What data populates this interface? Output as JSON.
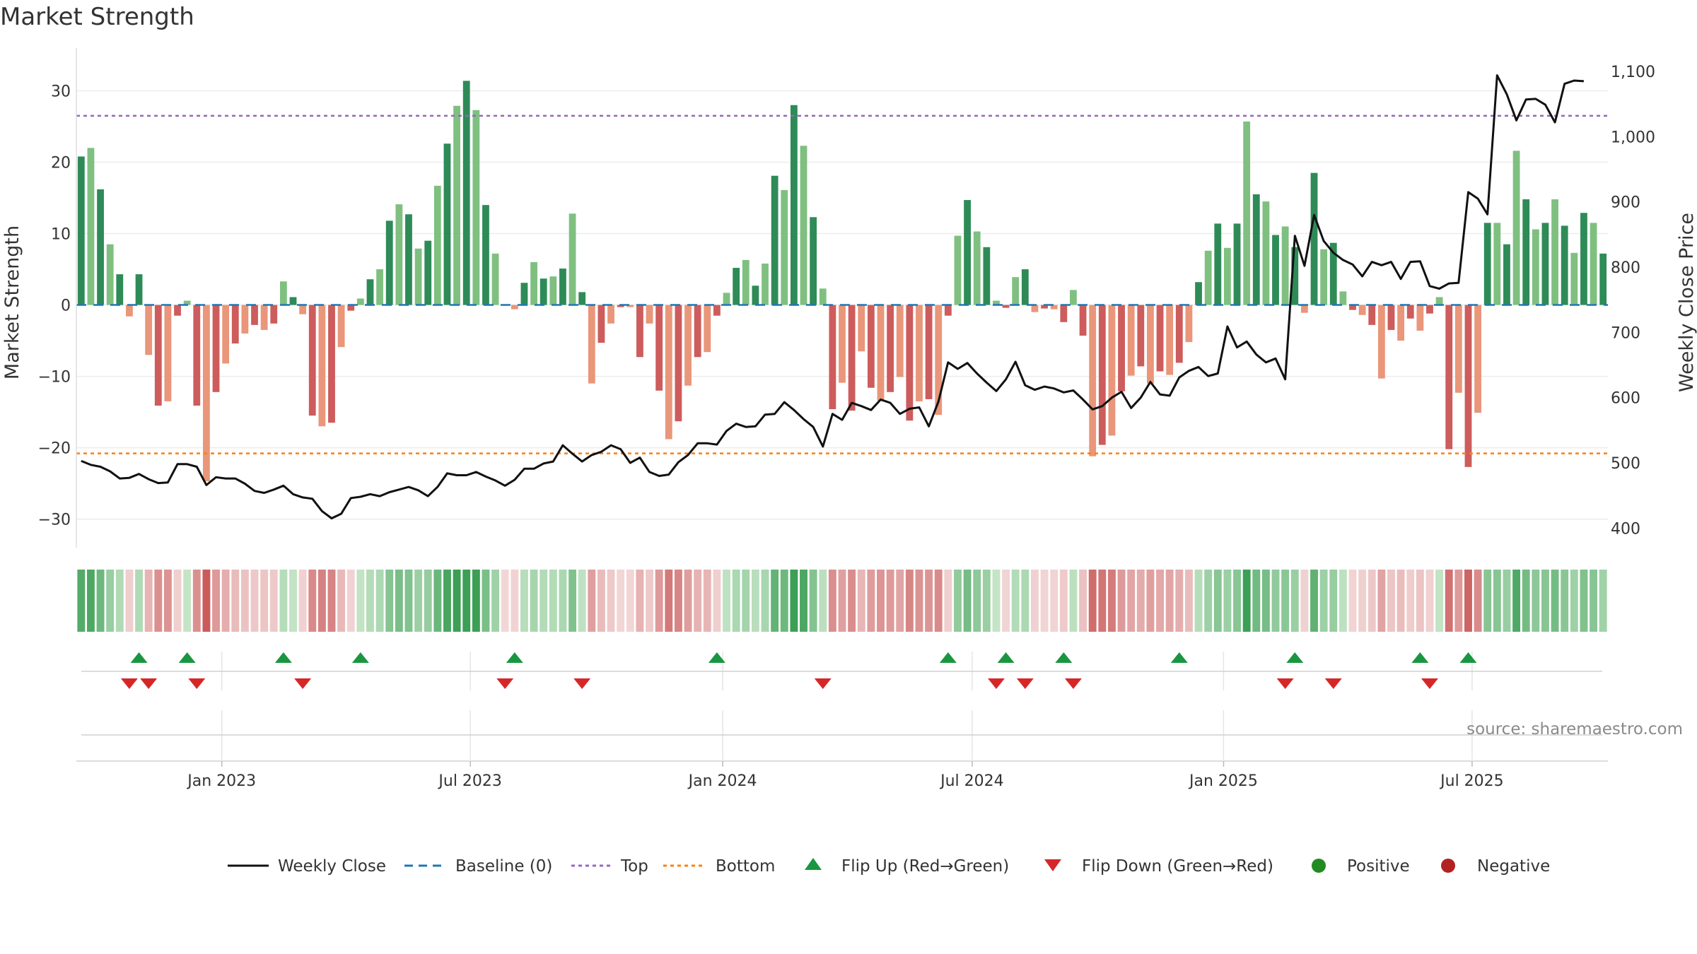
{
  "chart_data": {
    "type": "bar+line",
    "title": "Market Strength",
    "y_left_label": "Market Strength",
    "y_right_label": "Weekly Close Price",
    "y_left_range": [
      -34,
      35
    ],
    "y_right_range": [
      370,
      1125
    ],
    "y_left_ticks": [
      30,
      20,
      10,
      0,
      -10,
      -20,
      -30
    ],
    "y_left_tick_labels": [
      "30",
      "20",
      "10",
      "0",
      "−10",
      "−20",
      "−30"
    ],
    "y_right_ticks": [
      1100,
      1000,
      900,
      800,
      700,
      600,
      500,
      400
    ],
    "y_right_tick_labels": [
      "1,100",
      "1,000",
      "900",
      "800",
      "700",
      "600",
      "500",
      "400"
    ],
    "x_tick_labels": [
      "Jan 2023",
      "Jul 2023",
      "Jan 2024",
      "Jul 2024",
      "Jan 2025",
      "Jul 2025"
    ],
    "x_tick_index": [
      15.1,
      40.9,
      67.1,
      93.0,
      119.1,
      144.9
    ],
    "top_threshold": 26.5,
    "bottom_threshold": -20.8,
    "strength": [
      20.8,
      22,
      16.2,
      8.5,
      4.3,
      -1.6,
      4.3,
      -7,
      -14.1,
      -13.5,
      -1.5,
      0.6,
      -14.1,
      -24.7,
      -12.2,
      -8.2,
      -5.4,
      -4,
      -2.8,
      -3.5,
      -2.6,
      3.3,
      1.1,
      -1.3,
      -15.5,
      -17,
      -16.5,
      -5.9,
      -0.8,
      0.9,
      3.6,
      5,
      11.8,
      14.1,
      12.7,
      7.9,
      9,
      16.7,
      22.6,
      27.9,
      31.4,
      27.3,
      14,
      7.2,
      -0.1,
      -0.6,
      3.1,
      6,
      3.7,
      4,
      5.1,
      12.8,
      1.8,
      -11,
      -5.3,
      -2.6,
      -0.3,
      -0.3,
      -7.3,
      -2.6,
      -12,
      -18.8,
      -16.3,
      -11.3,
      -7.3,
      -6.6,
      -1.5,
      1.7,
      5.2,
      6.3,
      2.7,
      5.8,
      18.1,
      16.1,
      28,
      22.3,
      12.3,
      2.3,
      -14.6,
      -10.9,
      -14.8,
      -6.5,
      -11.6,
      -13.4,
      -12.2,
      -10.1,
      -16.2,
      -13.5,
      -13.2,
      -15.4,
      -1.5,
      9.7,
      14.7,
      10.3,
      8.1,
      0.6,
      -0.4,
      3.9,
      5,
      -1,
      -0.5,
      -0.6,
      -2.4,
      2.1,
      -4.3,
      -21.2,
      -19.6,
      -18.3,
      -12.1,
      -9.9,
      -8.6,
      -11,
      -9.3,
      -9.8,
      -8.1,
      -5.2,
      3.2,
      7.6,
      11.4,
      8,
      11.4,
      25.7,
      15.5,
      14.5,
      9.8,
      11,
      8.1,
      -1.1,
      18.5,
      7.8,
      8.7,
      1.9,
      -0.7,
      -1.4,
      -2.8,
      -10.3,
      -3.5,
      -5,
      -1.9,
      -3.6,
      -1.2,
      1.1,
      -20.2,
      -12.3,
      -22.7,
      -15.1,
      11.5,
      11.5,
      8.5,
      21.6,
      14.8,
      10.6,
      11.5,
      14.8,
      11.1,
      7.3,
      12.9,
      11.5,
      7.2
    ],
    "weekly_close": [
      503,
      497,
      494,
      487,
      476,
      477,
      483,
      475,
      469,
      470,
      498,
      498,
      494,
      466,
      478,
      476,
      476,
      468,
      457,
      454,
      459,
      465,
      452,
      447,
      445,
      426,
      415,
      422,
      446,
      448,
      452,
      449,
      455,
      459,
      463,
      458,
      449,
      463,
      484,
      481,
      481,
      486,
      479,
      473,
      465,
      474,
      491,
      491,
      499,
      502,
      527,
      514,
      502,
      512,
      517,
      527,
      521,
      500,
      508,
      486,
      480,
      482,
      501,
      512,
      530,
      530,
      528,
      549,
      560,
      555,
      556,
      574,
      575,
      593,
      581,
      567,
      555,
      525,
      575,
      566,
      592,
      587,
      581,
      597,
      592,
      575,
      583,
      585,
      556,
      594,
      654,
      644,
      653,
      637,
      623,
      610,
      628,
      655,
      619,
      612,
      617,
      614,
      608,
      611,
      597,
      582,
      587,
      600,
      609,
      584,
      600,
      624,
      605,
      603,
      631,
      641,
      647,
      633,
      637,
      709,
      677,
      686,
      666,
      654,
      660,
      628,
      848,
      802,
      880,
      840,
      822,
      811,
      804,
      786,
      808,
      803,
      808,
      782,
      808,
      809,
      771,
      767,
      775,
      776,
      915,
      905,
      881,
      1094,
      1065,
      1025,
      1057,
      1058,
      1049,
      1022,
      1081,
      1086,
      1085
    ],
    "flip_up_index": [
      6,
      11,
      21,
      29,
      45,
      66,
      90,
      96,
      102,
      114,
      126,
      139,
      144
    ],
    "flip_down_index": [
      5,
      7,
      12,
      23,
      44,
      52,
      77,
      95,
      98,
      103,
      125,
      130,
      140
    ],
    "legend": [
      "Weekly Close",
      "Baseline (0)",
      "Top",
      "Bottom",
      "Flip Up (Red→Green)",
      "Flip Down (Green→Red)",
      "Positive",
      "Negative"
    ],
    "source_text": "source: sharemaestro.com"
  },
  "colors": {
    "pos_strong": "#2e8b57",
    "pos_light": "#7fc080",
    "neg_strong": "#cd5c5c",
    "neg_light": "#e9967a",
    "close_line": "#111111",
    "baseline": "#1f77b4",
    "top_line": "#9467bd",
    "bottom_line": "#ff7f0e",
    "flip_up": "#1a9641",
    "flip_down": "#d62728",
    "positive_dot": "#228b22",
    "negative_dot": "#b22222"
  }
}
